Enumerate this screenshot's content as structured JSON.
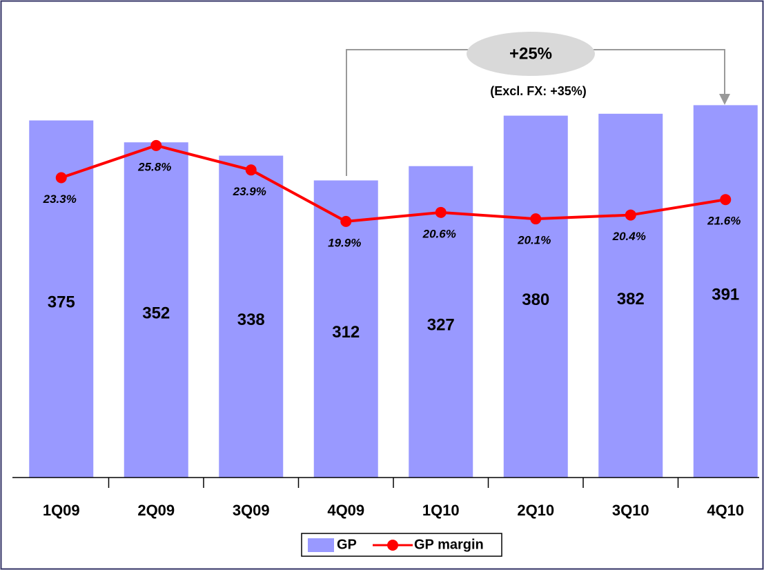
{
  "chart_data": {
    "type": "bar-line",
    "categories": [
      "1Q09",
      "2Q09",
      "3Q09",
      "4Q09",
      "1Q10",
      "2Q10",
      "3Q10",
      "4Q10"
    ],
    "series": [
      {
        "name": "GP",
        "type": "bar",
        "color": "#9999ff",
        "values": [
          375,
          352,
          338,
          312,
          327,
          380,
          382,
          391
        ]
      },
      {
        "name": "GP margin",
        "type": "line",
        "axis": "y2",
        "color": "#ff0000",
        "values": [
          23.3,
          25.8,
          23.9,
          19.9,
          20.6,
          20.1,
          20.4,
          21.6
        ],
        "value_labels": [
          "23.3%",
          "25.8%",
          "23.9%",
          "19.9%",
          "20.6%",
          "20.1%",
          "20.4%",
          "21.6%"
        ]
      }
    ],
    "ylim": [
      0,
      500
    ],
    "y2lim": [
      0,
      37
    ],
    "annotations": [
      "+25%",
      "(Excl. FX: +35%)"
    ],
    "legend": "bottom"
  }
}
